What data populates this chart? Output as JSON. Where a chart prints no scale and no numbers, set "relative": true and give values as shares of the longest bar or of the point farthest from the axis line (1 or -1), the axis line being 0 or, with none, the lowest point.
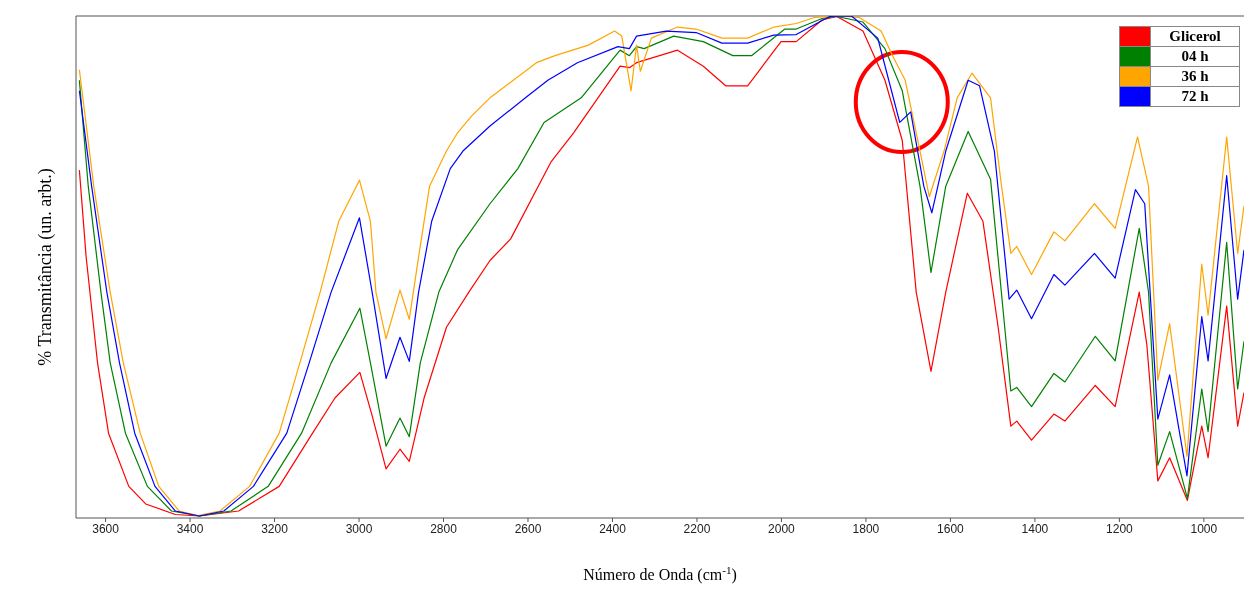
{
  "chart_data": {
    "type": "line",
    "xlabel": "Número de Onda (cm$^{-1}$)",
    "ylabel": "% Transmitância (un. arbt.)",
    "relative": true,
    "xlim": [
      3670,
      905
    ],
    "xticks": [
      3600,
      3400,
      3200,
      3000,
      2800,
      2600,
      2400,
      2200,
      2000,
      1800,
      1600,
      1400,
      1200,
      1000
    ],
    "legend": "top right",
    "marker": "none",
    "line_style": "solid",
    "series": [
      {
        "name": "Glicerol",
        "color": "#ff0000",
        "x": [
          3662,
          3646,
          3619,
          3593,
          3545,
          3505,
          3435,
          3378,
          3285,
          3189,
          3110,
          3057,
          2998,
          2969,
          2936,
          2903,
          2881,
          2846,
          2793,
          2740,
          2690,
          2641,
          2545,
          2492,
          2382,
          2360,
          2343,
          2246,
          2185,
          2132,
          2080,
          2001,
          1965,
          1904,
          1869,
          1807,
          1755,
          1714,
          1681,
          1646,
          1611,
          1560,
          1523,
          1487,
          1457,
          1443,
          1408,
          1355,
          1329,
          1257,
          1210,
          1153,
          1135,
          1109,
          1081,
          1039,
          1005,
          990,
          946,
          920,
          905
        ],
        "values": [
          0.693,
          0.52,
          0.309,
          0.169,
          0.063,
          0.028,
          0.007,
          0.004,
          0.014,
          0.063,
          0.169,
          0.239,
          0.29,
          0.204,
          0.098,
          0.137,
          0.113,
          0.239,
          0.38,
          0.45,
          0.513,
          0.556,
          0.71,
          0.767,
          0.9,
          0.897,
          0.907,
          0.932,
          0.9,
          0.861,
          0.861,
          0.949,
          0.949,
          0.992,
          0.999,
          0.97,
          0.872,
          0.752,
          0.45,
          0.292,
          0.45,
          0.647,
          0.591,
          0.38,
          0.183,
          0.193,
          0.155,
          0.207,
          0.193,
          0.264,
          0.222,
          0.45,
          0.345,
          0.074,
          0.12,
          0.035,
          0.183,
          0.12,
          0.422,
          0.183,
          0.25
        ]
      },
      {
        "name": "04 h",
        "color": "#008000",
        "x": [
          3662,
          3641,
          3611,
          3589,
          3553,
          3501,
          3444,
          3378,
          3303,
          3215,
          3136,
          3066,
          2998,
          2973,
          2936,
          2903,
          2881,
          2855,
          2811,
          2767,
          2690,
          2624,
          2562,
          2474,
          2382,
          2360,
          2343,
          2325,
          2255,
          2185,
          2115,
          2071,
          1992,
          1965,
          1904,
          1869,
          1807,
          1755,
          1714,
          1672,
          1646,
          1611,
          1558,
          1505,
          1457,
          1443,
          1408,
          1355,
          1329,
          1257,
          1210,
          1153,
          1131,
          1109,
          1081,
          1039,
          1005,
          990,
          946,
          920,
          905
        ],
        "values": [
          0.872,
          0.661,
          0.45,
          0.309,
          0.169,
          0.063,
          0.014,
          0.004,
          0.014,
          0.063,
          0.169,
          0.309,
          0.418,
          0.309,
          0.143,
          0.199,
          0.162,
          0.309,
          0.45,
          0.534,
          0.626,
          0.696,
          0.788,
          0.837,
          0.932,
          0.921,
          0.939,
          0.935,
          0.96,
          0.949,
          0.921,
          0.921,
          0.974,
          0.974,
          0.995,
          0.999,
          0.988,
          0.935,
          0.851,
          0.661,
          0.489,
          0.661,
          0.77,
          0.675,
          0.253,
          0.26,
          0.222,
          0.288,
          0.271,
          0.362,
          0.313,
          0.577,
          0.45,
          0.105,
          0.172,
          0.039,
          0.257,
          0.172,
          0.549,
          0.257,
          0.352
        ]
      },
      {
        "name": "36 h",
        "color": "#ffa500",
        "x": [
          3662,
          3628,
          3589,
          3558,
          3518,
          3474,
          3426,
          3382,
          3329,
          3259,
          3189,
          3140,
          3092,
          3048,
          2999,
          2973,
          2960,
          2936,
          2903,
          2881,
          2859,
          2833,
          2793,
          2767,
          2732,
          2690,
          2580,
          2536,
          2457,
          2395,
          2378,
          2356,
          2343,
          2334,
          2308,
          2246,
          2202,
          2141,
          2080,
          2018,
          1965,
          1922,
          1869,
          1816,
          1764,
          1737,
          1707,
          1672,
          1650,
          1615,
          1584,
          1549,
          1505,
          1479,
          1457,
          1443,
          1408,
          1355,
          1329,
          1259,
          1210,
          1157,
          1131,
          1109,
          1081,
          1040,
          1005,
          990,
          946,
          920,
          905
        ],
        "values": [
          0.893,
          0.661,
          0.45,
          0.309,
          0.169,
          0.063,
          0.014,
          0.005,
          0.014,
          0.063,
          0.169,
          0.309,
          0.45,
          0.591,
          0.673,
          0.591,
          0.45,
          0.357,
          0.454,
          0.396,
          0.52,
          0.661,
          0.731,
          0.767,
          0.802,
          0.837,
          0.907,
          0.921,
          0.942,
          0.97,
          0.96,
          0.851,
          0.942,
          0.89,
          0.956,
          0.978,
          0.974,
          0.956,
          0.956,
          0.978,
          0.985,
          0.997,
          1,
          0.997,
          0.97,
          0.921,
          0.872,
          0.731,
          0.64,
          0.731,
          0.837,
          0.886,
          0.837,
          0.661,
          0.527,
          0.541,
          0.485,
          0.57,
          0.552,
          0.626,
          0.577,
          0.759,
          0.661,
          0.274,
          0.387,
          0.123,
          0.506,
          0.404,
          0.759,
          0.527,
          0.622
        ]
      },
      {
        "name": "72 h",
        "color": "#0000ff",
        "x": [
          3662,
          3633,
          3597,
          3567,
          3531,
          3483,
          3435,
          3378,
          3320,
          3250,
          3171,
          3118,
          3066,
          2999,
          2969,
          2936,
          2903,
          2881,
          2859,
          2828,
          2784,
          2754,
          2690,
          2606,
          2553,
          2483,
          2387,
          2360,
          2343,
          2273,
          2202,
          2141,
          2080,
          2018,
          1965,
          1886,
          1834,
          1772,
          1746,
          1720,
          1694,
          1663,
          1644,
          1611,
          1558,
          1531,
          1496,
          1461,
          1443,
          1408,
          1355,
          1329,
          1259,
          1210,
          1162,
          1140,
          1109,
          1081,
          1040,
          1005,
          990,
          946,
          920,
          905
        ],
        "values": [
          0.851,
          0.661,
          0.45,
          0.309,
          0.169,
          0.063,
          0.014,
          0.004,
          0.014,
          0.063,
          0.169,
          0.309,
          0.45,
          0.598,
          0.45,
          0.278,
          0.36,
          0.312,
          0.45,
          0.591,
          0.696,
          0.731,
          0.781,
          0.837,
          0.872,
          0.907,
          0.939,
          0.935,
          0.96,
          0.97,
          0.967,
          0.946,
          0.946,
          0.962,
          0.963,
          0.999,
          1,
          0.956,
          0.872,
          0.788,
          0.809,
          0.661,
          0.608,
          0.731,
          0.872,
          0.861,
          0.731,
          0.436,
          0.454,
          0.397,
          0.485,
          0.464,
          0.527,
          0.478,
          0.654,
          0.626,
          0.197,
          0.285,
          0.084,
          0.401,
          0.313,
          0.682,
          0.436,
          0.534
        ]
      }
    ]
  }
}
